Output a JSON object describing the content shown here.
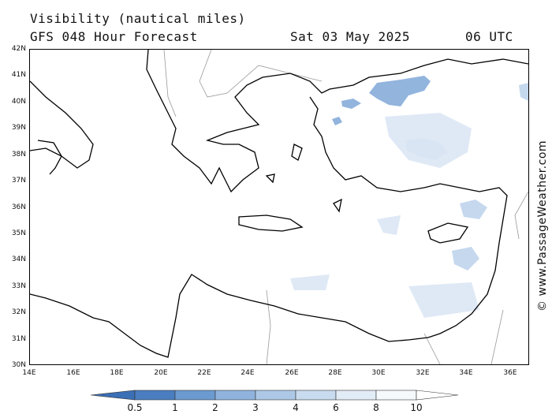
{
  "header": {
    "variable": "Visibility (nautical miles)",
    "model": "GFS 048 Hour Forecast",
    "date": "Sat 03 May 2025",
    "time": "06 UTC"
  },
  "map": {
    "lat_labels": [
      "42N",
      "41N",
      "40N",
      "39N",
      "38N",
      "37N",
      "36N",
      "35N",
      "34N",
      "33N",
      "32N",
      "31N",
      "30N"
    ],
    "lon_labels": [
      "14E",
      "16E",
      "18E",
      "20E",
      "22E",
      "24E",
      "26E",
      "28E",
      "30E",
      "32E",
      "34E",
      "36E"
    ],
    "lat_range": [
      30,
      42
    ],
    "lon_range": [
      14,
      37
    ],
    "land_color": "#ffffff",
    "coast_color": "#000000",
    "border_color": "#999999"
  },
  "colorbar": {
    "labels": [
      "0.5",
      "1",
      "2",
      "3",
      "4",
      "6",
      "8",
      "10"
    ],
    "colors": [
      "#4a7ec0",
      "#6b9ad0",
      "#8fb3dd",
      "#adc8e6",
      "#c9dbee",
      "#e2ecf6",
      "#f6f9fc"
    ]
  },
  "credit": "© www.PassageWeather.com"
}
